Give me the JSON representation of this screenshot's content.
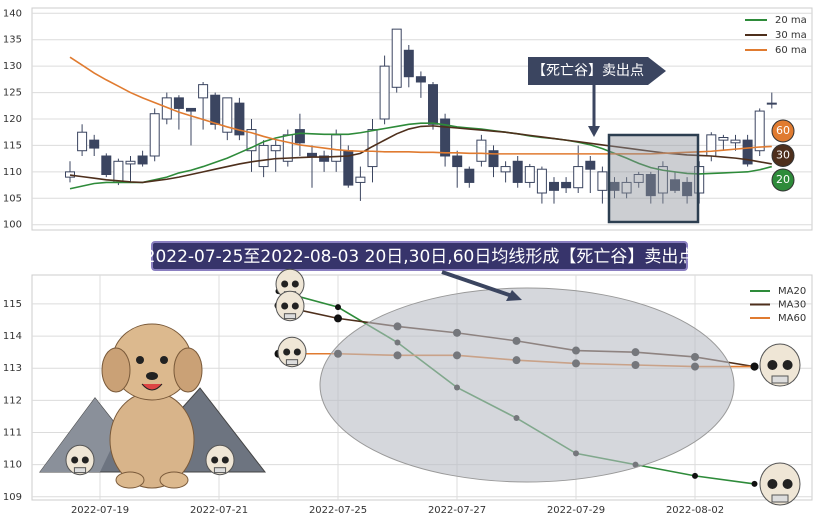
{
  "chart_data": [
    {
      "type": "candlestick",
      "open": [
        109,
        114,
        116,
        113,
        108,
        111.5,
        113,
        113,
        120,
        124,
        122,
        124,
        124.5,
        117.5,
        123,
        114,
        111,
        114,
        112,
        118,
        113.5,
        113,
        112,
        114,
        108,
        111,
        120,
        126,
        133,
        128,
        126.5,
        120,
        113,
        110.5,
        112,
        114,
        110,
        112,
        108,
        106,
        108,
        108,
        107,
        112,
        106.5,
        108,
        106,
        108,
        109.5,
        106,
        108.5,
        108,
        106,
        113,
        116,
        115.5,
        116,
        114,
        123
      ],
      "high": [
        112,
        119,
        117,
        113.5,
        112.5,
        113,
        114,
        122,
        125,
        124.5,
        122,
        127,
        125,
        124,
        124,
        120,
        116,
        116,
        118,
        121,
        115,
        114,
        118,
        115,
        111,
        120,
        132,
        137,
        134,
        129,
        127,
        121,
        114,
        111,
        117,
        115,
        112,
        113,
        111.5,
        111,
        109,
        109,
        115,
        113,
        111,
        109,
        109,
        110,
        110,
        112,
        110,
        109,
        112,
        117.5,
        117,
        117,
        117,
        122,
        125
      ],
      "low": [
        108,
        113,
        113,
        109,
        107.5,
        108,
        111,
        112,
        119,
        118,
        115,
        118,
        118,
        116,
        116,
        110,
        109,
        110,
        111,
        113,
        107,
        110,
        110,
        107,
        104.5,
        108,
        119,
        125,
        126,
        124,
        118,
        111,
        107,
        107,
        111,
        109,
        108,
        107,
        107,
        104,
        104,
        106,
        106,
        106,
        104,
        105,
        105,
        107,
        104,
        104,
        106,
        104,
        104,
        112,
        114,
        114,
        111,
        113,
        122
      ],
      "close": [
        110,
        117.5,
        114.5,
        109.5,
        112,
        112,
        111.5,
        121,
        124,
        122,
        121.5,
        126.5,
        119,
        124,
        117,
        118,
        115,
        115,
        117,
        115.5,
        113,
        112,
        117,
        107.5,
        109,
        118,
        130,
        137,
        128,
        127,
        119,
        113,
        111,
        108,
        116,
        111,
        111,
        108,
        111,
        110.5,
        106.5,
        107,
        111,
        110.5,
        110,
        106.5,
        108,
        109.5,
        105.5,
        111,
        106.5,
        105.5,
        111,
        117,
        116.5,
        116,
        111.5,
        121.5,
        123
      ],
      "up_color": "#ffffff",
      "down_color": "#3b4560",
      "ylim": [
        99,
        141
      ],
      "yticks": [
        100,
        105,
        110,
        115,
        120,
        125,
        130,
        135,
        140
      ],
      "grid": true,
      "legend": "upper right",
      "series": [
        {
          "name": "20 ma",
          "color": "#2e8b3a",
          "values": [
            106.8,
            107.3,
            107.8,
            108,
            108,
            108,
            108,
            108.5,
            109,
            109.8,
            110.3,
            111,
            111.8,
            112.6,
            113.6,
            114.6,
            115.7,
            116.4,
            116.9,
            117.3,
            117.2,
            117.1,
            117.1,
            117.1,
            117.4,
            117.8,
            118.2,
            118.6,
            119,
            119.2,
            119.2,
            118.9,
            118.5,
            118.3,
            118.1,
            117.8,
            117.5,
            117.2,
            116.8,
            116.5,
            116.3,
            116,
            115.6,
            115.1,
            114.4,
            113.5,
            112.6,
            111.6,
            110.8,
            110.3,
            110,
            109.7,
            109.6,
            109.7,
            109.8,
            109.9,
            110,
            110.4,
            111
          ]
        },
        {
          "name": "30 ma",
          "color": "#4e2f1c",
          "values": [
            109.4,
            109.1,
            108.8,
            108.5,
            108.3,
            108.1,
            108,
            108.3,
            108.6,
            109,
            109.5,
            110,
            110.5,
            111,
            111.5,
            111.9,
            112.2,
            112.5,
            112.6,
            112.7,
            112.8,
            112.8,
            112.9,
            113,
            113.5,
            114.8,
            116,
            117.2,
            118.1,
            118.6,
            118.7,
            118.5,
            118.3,
            118.1,
            117.9,
            117.7,
            117.5,
            117.2,
            116.9,
            116.6,
            116.3,
            116,
            115.7,
            115.4,
            115.1,
            114.8,
            114.5,
            114.2,
            113.9,
            113.6,
            113.4,
            113.2,
            113.1,
            113,
            112.8,
            112.6,
            112.3,
            111.9,
            111.5
          ]
        },
        {
          "name": "60 ma",
          "color": "#e07b30",
          "values": [
            131.7,
            130.2,
            128.7,
            127.4,
            126.2,
            125,
            124,
            123.1,
            122.2,
            121.3,
            120.6,
            119.9,
            119.2,
            118.5,
            117.9,
            117.4,
            116.7,
            116.1,
            115.6,
            115.1,
            114.8,
            114.5,
            114.2,
            114,
            113.9,
            113.9,
            113.8,
            113.8,
            113.8,
            113.7,
            113.7,
            113.6,
            113.6,
            113.5,
            113.5,
            113.4,
            113.4,
            113.4,
            113.4,
            113.4,
            113.4,
            113.4,
            113.4,
            113.4,
            113.4,
            113.4,
            113.4,
            113.4,
            113.4,
            113.5,
            113.6,
            113.7,
            113.8,
            113.9,
            114.1,
            114.3,
            114.5,
            114.7,
            114.8
          ]
        }
      ],
      "annotation": "【死亡谷】卖出点",
      "end_labels": [
        "60",
        "30",
        "20"
      ]
    },
    {
      "type": "line",
      "title": "2022-07-25至2022-08-03 20日,30日,60日均线形成【死亡谷】卖出点",
      "categories": [
        "2022-07-19",
        null,
        "2022-07-21",
        null,
        "2022-07-25",
        null,
        "2022-07-27",
        null,
        "2022-07-29",
        null,
        "2022-08-02",
        null
      ],
      "ylim": [
        108.9,
        115.9
      ],
      "yticks": [
        109,
        110,
        111,
        112,
        113,
        114,
        115
      ],
      "grid": true,
      "legend": "upper right",
      "series": [
        {
          "name": "MA20",
          "color": "#2e8b3a",
          "values": [
            null,
            null,
            null,
            115.4,
            114.9,
            113.8,
            112.4,
            111.45,
            110.35,
            110,
            109.65,
            109.4
          ]
        },
        {
          "name": "MA30",
          "color": "#4e2f1c",
          "values": [
            null,
            null,
            null,
            114.95,
            114.55,
            114.3,
            114.1,
            113.85,
            113.55,
            113.5,
            113.35,
            113.05
          ]
        },
        {
          "name": "MA60",
          "color": "#e07b30",
          "values": [
            null,
            null,
            null,
            113.45,
            113.45,
            113.4,
            113.4,
            113.25,
            113.15,
            113.1,
            113.05,
            113.05
          ]
        }
      ]
    }
  ]
}
